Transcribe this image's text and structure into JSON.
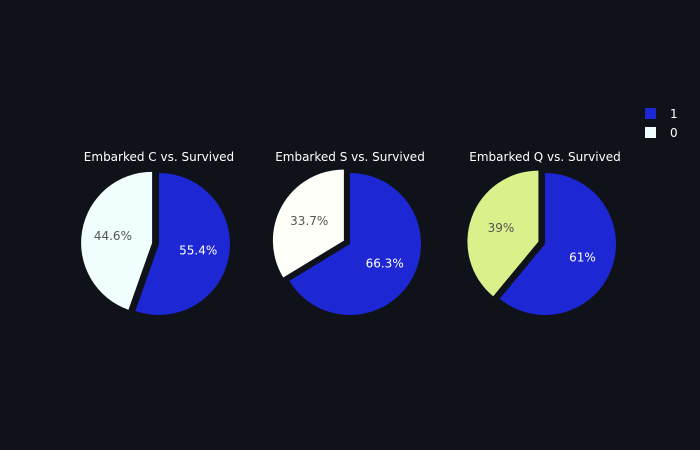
{
  "colors": {
    "background": "#10121a",
    "survived_1": "#1d27d4"
  },
  "legend": {
    "items": [
      {
        "label": "1",
        "color": "#1d27d4"
      },
      {
        "label": "0",
        "color": "#f0fffe"
      }
    ]
  },
  "chart_data": [
    {
      "type": "pie",
      "title": "Embarked C vs. Survived",
      "slices": [
        {
          "name": "1",
          "value": 55.4,
          "label": "55.4%",
          "color": "#1d27d4",
          "text_color": "#ffffff"
        },
        {
          "name": "0",
          "value": 44.6,
          "label": "44.6%",
          "color": "#f0fffe",
          "text_color": "#555555"
        }
      ]
    },
    {
      "type": "pie",
      "title": "Embarked S vs. Survived",
      "slices": [
        {
          "name": "1",
          "value": 66.3,
          "label": "66.3%",
          "color": "#1d27d4",
          "text_color": "#ffffff"
        },
        {
          "name": "0",
          "value": 33.7,
          "label": "33.7%",
          "color": "#fffffa",
          "text_color": "#555555"
        }
      ]
    },
    {
      "type": "pie",
      "title": "Embarked Q vs. Survived",
      "slices": [
        {
          "name": "1",
          "value": 61,
          "label": "61%",
          "color": "#1d27d4",
          "text_color": "#ffffff"
        },
        {
          "name": "0",
          "value": 39,
          "label": "39%",
          "color": "#daf08a",
          "text_color": "#555555"
        }
      ]
    }
  ]
}
